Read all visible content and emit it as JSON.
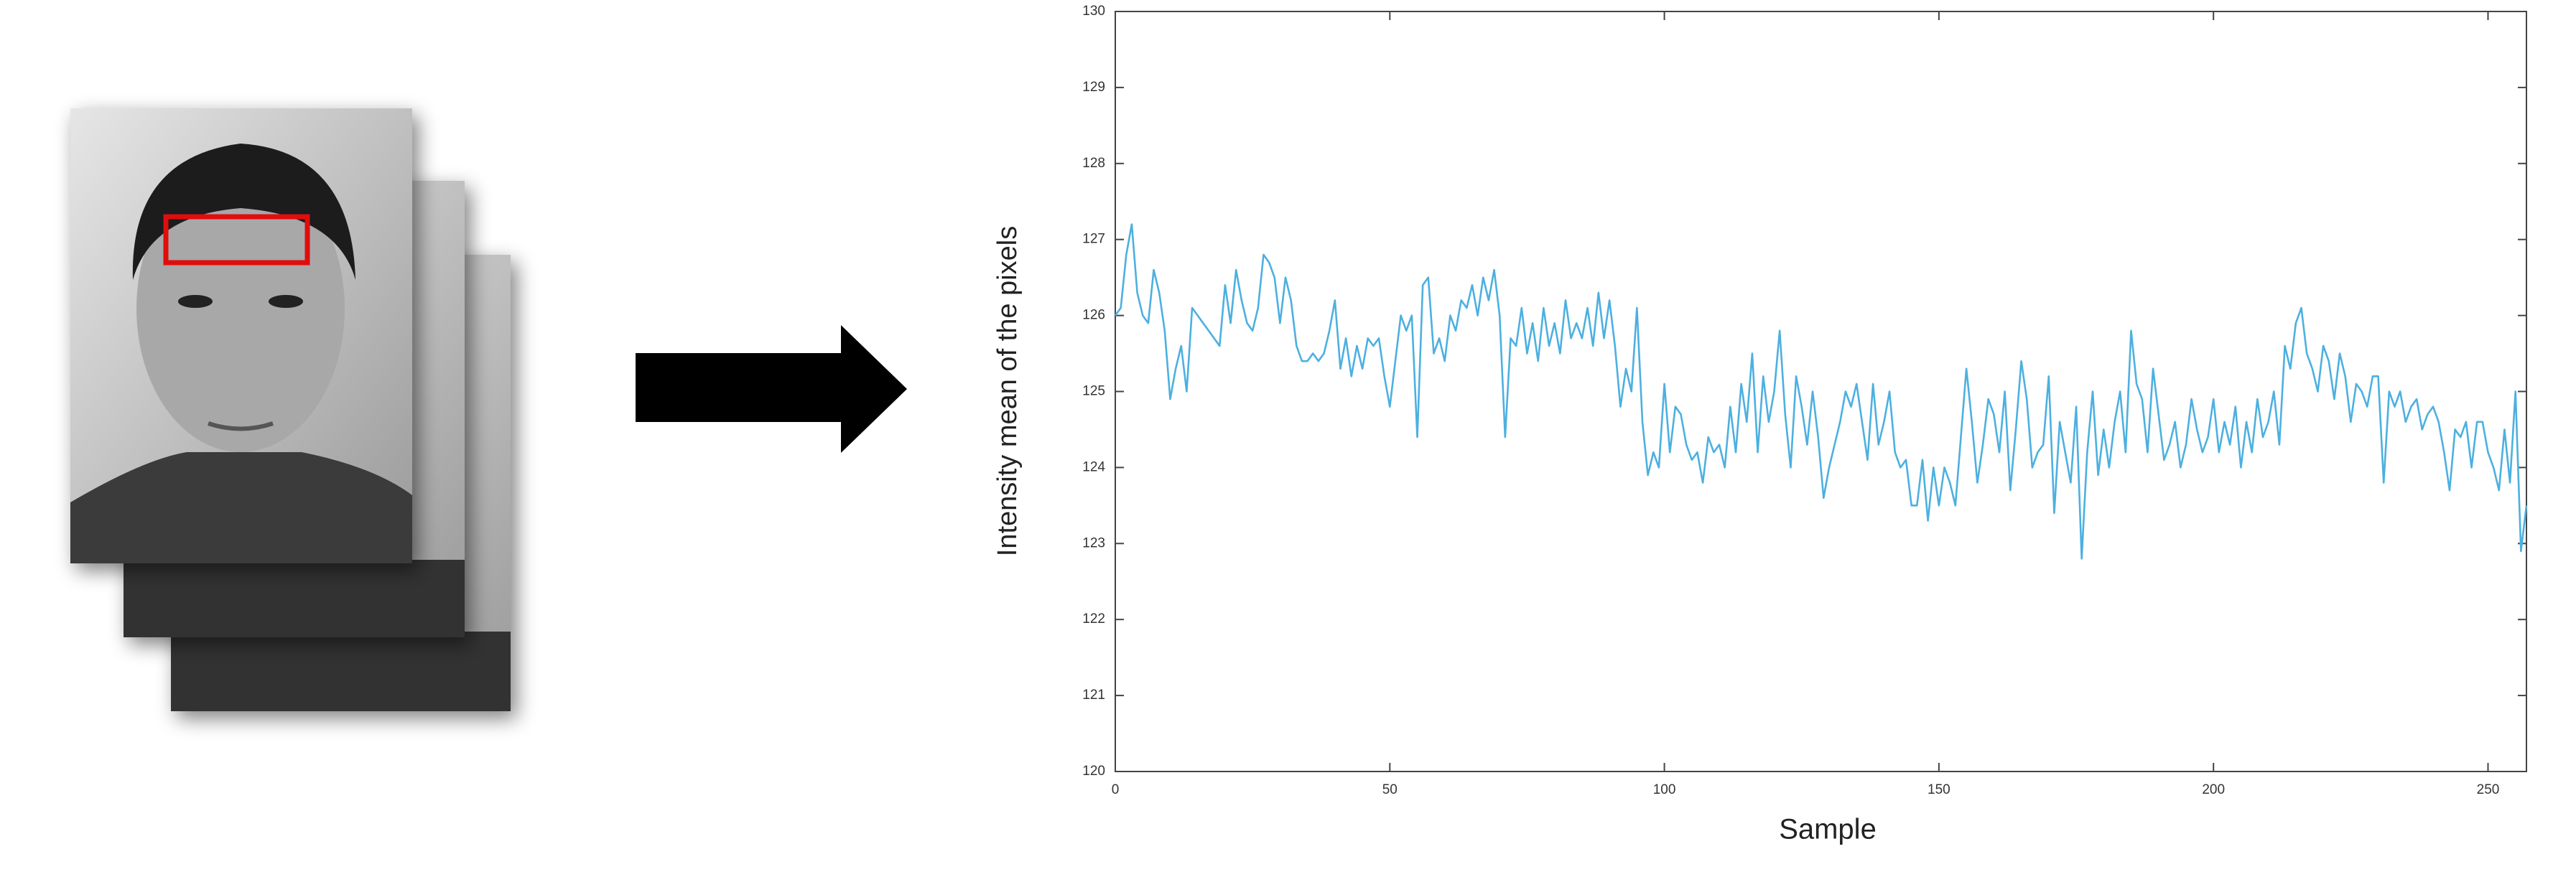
{
  "chart_data": {
    "type": "line",
    "xlabel": "Sample",
    "ylabel": "Intensity mean of the pixels",
    "series": [
      {
        "color": "#4cb0e0",
        "values": [
          126.0,
          126.1,
          126.8,
          127.2,
          126.3,
          126.0,
          125.9,
          126.6,
          126.3,
          125.8,
          124.9,
          125.3,
          125.6,
          125.0,
          126.1,
          126.0,
          125.9,
          125.8,
          125.7,
          125.6,
          126.4,
          125.9,
          126.6,
          126.2,
          125.9,
          125.8,
          126.1,
          126.8,
          126.7,
          126.5,
          125.9,
          126.5,
          126.2,
          125.6,
          125.4,
          125.4,
          125.5,
          125.4,
          125.5,
          125.8,
          126.2,
          125.3,
          125.7,
          125.2,
          125.6,
          125.3,
          125.7,
          125.6,
          125.7,
          125.2,
          124.8,
          125.4,
          126.0,
          125.8,
          126.0,
          124.4,
          126.4,
          126.5,
          125.5,
          125.7,
          125.4,
          126.0,
          125.8,
          126.2,
          126.1,
          126.4,
          126.0,
          126.5,
          126.2,
          126.6,
          126.0,
          124.4,
          125.7,
          125.6,
          126.1,
          125.5,
          125.9,
          125.4,
          126.1,
          125.6,
          125.9,
          125.5,
          126.2,
          125.7,
          125.9,
          125.7,
          126.1,
          125.6,
          126.3,
          125.7,
          126.2,
          125.6,
          124.8,
          125.3,
          125.0,
          126.1,
          124.6,
          123.9,
          124.2,
          124.0,
          125.1,
          124.2,
          124.8,
          124.7,
          124.3,
          124.1,
          124.2,
          123.8,
          124.4,
          124.2,
          124.3,
          124.0,
          124.8,
          124.2,
          125.1,
          124.6,
          125.5,
          124.2,
          125.2,
          124.6,
          125.0,
          125.8,
          124.7,
          124.0,
          125.2,
          124.8,
          124.3,
          125.0,
          124.4,
          123.6,
          124.0,
          124.3,
          124.6,
          125.0,
          124.8,
          125.1,
          124.6,
          124.1,
          125.1,
          124.3,
          124.6,
          125.0,
          124.2,
          124.0,
          124.1,
          123.5,
          123.5,
          124.1,
          123.3,
          124.0,
          123.5,
          124.0,
          123.8,
          123.5,
          124.4,
          125.3,
          124.6,
          123.8,
          124.3,
          124.9,
          124.7,
          124.2,
          125.0,
          123.7,
          124.5,
          125.4,
          124.9,
          124.0,
          124.2,
          124.3,
          125.2,
          123.4,
          124.6,
          124.2,
          123.8,
          124.8,
          122.8,
          124.2,
          125.0,
          123.9,
          124.5,
          124.0,
          124.6,
          125.0,
          124.2,
          125.8,
          125.1,
          124.9,
          124.2,
          125.3,
          124.7,
          124.1,
          124.3,
          124.6,
          124.0,
          124.3,
          124.9,
          124.5,
          124.2,
          124.4,
          124.9,
          124.2,
          124.6,
          124.3,
          124.8,
          124.0,
          124.6,
          124.2,
          124.9,
          124.4,
          124.6,
          125.0,
          124.3,
          125.6,
          125.3,
          125.9,
          126.1,
          125.5,
          125.3,
          125.0,
          125.6,
          125.4,
          124.9,
          125.5,
          125.2,
          124.6,
          125.1,
          125.0,
          124.8,
          125.2,
          125.2,
          123.8,
          125.0,
          124.8,
          125.0,
          124.6,
          124.8,
          124.9,
          124.5,
          124.7,
          124.8,
          124.6,
          124.2,
          123.7,
          124.5,
          124.4,
          124.6,
          124.0,
          124.6,
          124.6,
          124.2,
          124.0,
          123.7,
          124.5,
          123.8,
          125.0,
          122.9,
          123.5
        ]
      }
    ],
    "xlim": [
      0,
      257
    ],
    "xticks": [
      0,
      50,
      100,
      150,
      200,
      250
    ],
    "ylim": [
      120,
      130
    ],
    "yticks": [
      120,
      121,
      122,
      123,
      124,
      125,
      126,
      127,
      128,
      129,
      130
    ]
  }
}
